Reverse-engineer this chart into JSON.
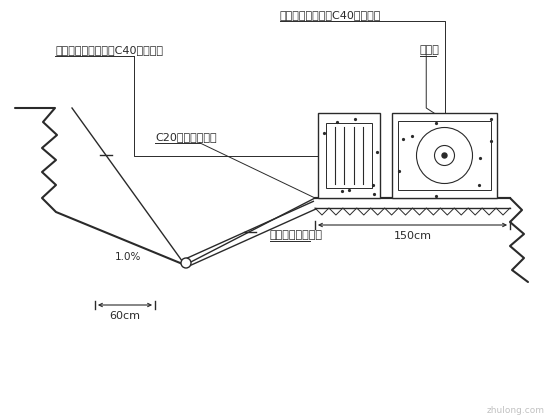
{
  "bg_color": "#ffffff",
  "line_color": "#2a2a2a",
  "figsize": [
    5.6,
    4.2
  ],
  "dpi": 100,
  "annotations": {
    "steel_wire": "钢丝位移计测头及C40砼保护墩",
    "water_pipe_head": "水管式沉降仪测头及C40砼保护墩",
    "rebar_net": "钢筋网",
    "c20_slab": "C20混凝土预制板",
    "water_pipe_line": "水管式沉降仪管线",
    "slope_label": "1.0%",
    "dim_150": "150cm",
    "dim_60": "60cm"
  }
}
